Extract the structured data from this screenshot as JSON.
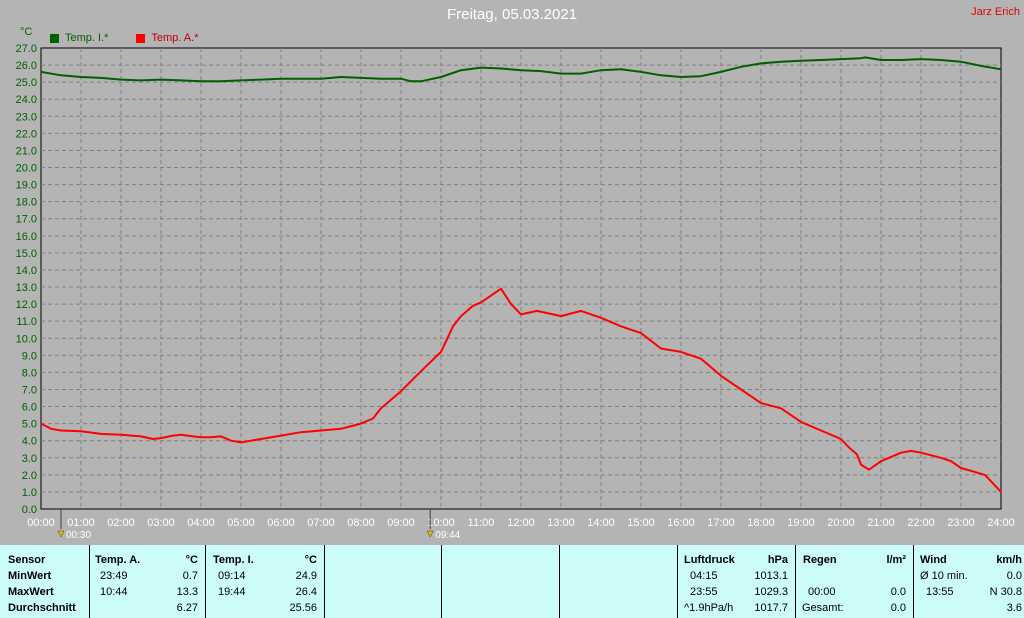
{
  "header": {
    "title": "Freitag, 05.03.2021",
    "author": "Jarz Erich",
    "unit": "°C"
  },
  "legend": [
    {
      "label": "Temp. I.*",
      "color": "#006000"
    },
    {
      "label": "Temp. A.*",
      "color": "#ff0000"
    }
  ],
  "chart_data": {
    "type": "line",
    "title": "Freitag, 05.03.2021",
    "ylabel": "°C",
    "ylim": [
      0,
      27
    ],
    "xlim": [
      0,
      24
    ],
    "grid": true,
    "legend_position": "top-left",
    "x_ticks": [
      "00:00",
      "01:00",
      "02:00",
      "03:00",
      "04:00",
      "05:00",
      "06:00",
      "07:00",
      "08:00",
      "09:00",
      "10:00",
      "11:00",
      "12:00",
      "13:00",
      "14:00",
      "15:00",
      "16:00",
      "17:00",
      "18:00",
      "19:00",
      "20:00",
      "21:00",
      "22:00",
      "23:00",
      "24:00"
    ],
    "y_ticks": [
      "0.0",
      "1.0",
      "2.0",
      "3.0",
      "4.0",
      "5.0",
      "6.0",
      "7.0",
      "8.0",
      "9.0",
      "10.0",
      "11.0",
      "12.0",
      "13.0",
      "14.0",
      "15.0",
      "16.0",
      "17.0",
      "18.0",
      "19.0",
      "20.0",
      "21.0",
      "22.0",
      "23.0",
      "24.0",
      "25.0",
      "26.0",
      "27.0"
    ],
    "markers": [
      {
        "x": 0.5,
        "label": "00:30"
      },
      {
        "x": 9.73,
        "label": "09:44"
      }
    ],
    "series": [
      {
        "name": "Temp. I.*",
        "color": "#006000",
        "x": [
          0,
          0.5,
          1,
          1.5,
          2,
          2.5,
          3,
          3.5,
          4,
          4.5,
          5,
          5.5,
          6,
          6.5,
          7,
          7.5,
          8,
          8.5,
          9,
          9.25,
          9.5,
          10,
          10.5,
          11,
          11.5,
          12,
          12.5,
          13,
          13.5,
          14,
          14.5,
          15,
          15.5,
          16,
          16.5,
          17,
          17.5,
          18,
          18.5,
          19,
          19.5,
          20,
          20.5,
          20.6,
          21,
          21.5,
          22,
          22.5,
          23,
          23.5,
          24
        ],
        "y": [
          25.6,
          25.4,
          25.3,
          25.25,
          25.15,
          25.1,
          25.15,
          25.1,
          25.05,
          25.05,
          25.1,
          25.15,
          25.2,
          25.2,
          25.2,
          25.3,
          25.25,
          25.2,
          25.2,
          25.05,
          25.05,
          25.3,
          25.7,
          25.85,
          25.8,
          25.7,
          25.65,
          25.5,
          25.5,
          25.7,
          25.75,
          25.6,
          25.4,
          25.3,
          25.35,
          25.6,
          25.9,
          26.1,
          26.2,
          26.25,
          26.3,
          26.35,
          26.4,
          26.45,
          26.3,
          26.3,
          26.35,
          26.3,
          26.2,
          25.95,
          25.75
        ]
      },
      {
        "name": "Temp. A.*",
        "color": "#ff0000",
        "x": [
          0,
          0.25,
          0.5,
          1,
          1.5,
          2,
          2.5,
          2.8,
          3,
          3.3,
          3.5,
          3.8,
          4,
          4.25,
          4.5,
          4.75,
          5,
          5.5,
          6,
          6.5,
          7,
          7.5,
          8,
          8.3,
          8.5,
          9,
          9.3,
          9.6,
          10,
          10.3,
          10.5,
          10.8,
          11,
          11.5,
          11.75,
          12,
          12.4,
          13,
          13.5,
          14,
          14.5,
          15,
          15.5,
          16,
          16.5,
          17,
          17.5,
          18,
          18.5,
          19,
          19.5,
          20,
          20.2,
          20.4,
          20.5,
          20.7,
          21,
          21.5,
          21.75,
          22,
          22.5,
          22.75,
          23,
          23.3,
          23.6,
          24
        ],
        "y": [
          5.0,
          4.7,
          4.6,
          4.55,
          4.4,
          4.35,
          4.25,
          4.1,
          4.15,
          4.3,
          4.35,
          4.25,
          4.2,
          4.2,
          4.25,
          4.0,
          3.9,
          4.1,
          4.3,
          4.5,
          4.6,
          4.7,
          5.0,
          5.3,
          5.9,
          6.9,
          7.6,
          8.3,
          9.2,
          10.7,
          11.3,
          11.9,
          12.1,
          12.9,
          12.0,
          11.4,
          11.6,
          11.3,
          11.6,
          11.2,
          10.7,
          10.3,
          9.4,
          9.2,
          8.8,
          7.8,
          7.0,
          6.2,
          5.9,
          5.1,
          4.6,
          4.1,
          3.6,
          3.2,
          2.6,
          2.3,
          2.8,
          3.3,
          3.4,
          3.3,
          3.0,
          2.8,
          2.4,
          2.2,
          2.0,
          1.0
        ]
      }
    ]
  },
  "stats": {
    "row_labels": {
      "sensor": "Sensor",
      "min": "MinWert",
      "max": "MaxWert",
      "avg": "Durchschnitt"
    },
    "temp_a": {
      "header": "Temp. A.",
      "unit": "°C",
      "min_time": "23:49",
      "min_val": "0.7",
      "max_time": "10:44",
      "max_val": "13.3",
      "avg": "6.27"
    },
    "temp_i": {
      "header": "Temp. I.",
      "unit": "°C",
      "min_time": "09:14",
      "min_val": "24.9",
      "max_time": "19:44",
      "max_val": "26.4",
      "avg": "25.56"
    },
    "luftdruck": {
      "header": "Luftdruck",
      "unit": "hPa",
      "min_time": "04:15",
      "min_val": "1013.1",
      "max_time": "23:55",
      "max_val": "1029.3",
      "trend_label": "^1.9hPa/h",
      "avg": "1017.7"
    },
    "regen": {
      "header": "Regen",
      "unit": "l/m²",
      "time": "00:00",
      "val": "0.0",
      "total_label": "Gesamt:",
      "total": "0.0"
    },
    "wind": {
      "header": "Wind",
      "unit": "km/h",
      "avg_label": "Ø 10 min.",
      "avg_val": "0.0",
      "max_time": "13:55",
      "max_val": "N 30.8",
      "val3": "3.6"
    }
  }
}
